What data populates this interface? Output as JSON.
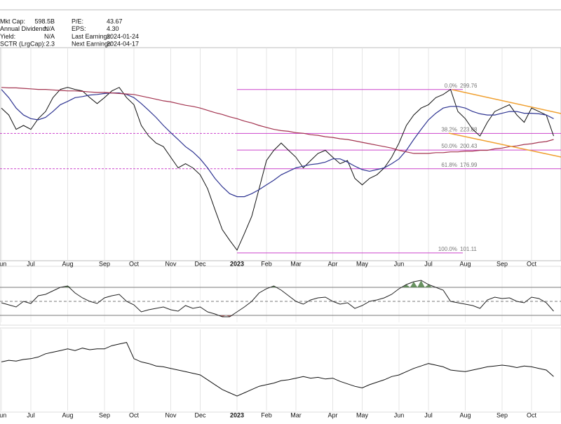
{
  "stats": [
    {
      "label": "Mkt Cap:",
      "value": "598.5B"
    },
    {
      "label": "Annual Dividend:",
      "value": "N/A"
    },
    {
      "label": "Yield:",
      "value": "N/A"
    },
    {
      "label": "SCTR (LrgCap):",
      "value": "2.3"
    },
    {
      "label": "P/E:",
      "value": "43.67"
    },
    {
      "label": "EPS:",
      "value": "4.30"
    },
    {
      "label": "Last Earnings:",
      "value": "2024-01-24"
    },
    {
      "label": "Next Earnings:",
      "value": "2024-04-17"
    }
  ],
  "chart_data": [
    {
      "type": "line",
      "log_scale": true,
      "ylim": [
        96,
        396
      ],
      "grid": true,
      "categories": [
        "Jun",
        null,
        null,
        null,
        "Jul",
        null,
        null,
        null,
        null,
        "Aug",
        null,
        null,
        null,
        null,
        "Sep",
        null,
        null,
        null,
        "Oct",
        null,
        null,
        null,
        null,
        "Nov",
        null,
        null,
        null,
        "Dec",
        null,
        null,
        null,
        null,
        "2023",
        null,
        null,
        null,
        "Feb",
        null,
        null,
        null,
        "Mar",
        null,
        null,
        null,
        null,
        "Apr",
        null,
        null,
        null,
        "May",
        null,
        null,
        null,
        null,
        "Jun",
        null,
        null,
        null,
        "Jul",
        null,
        null,
        null,
        null,
        "Aug",
        null,
        null,
        null,
        null,
        "Sep",
        null,
        null,
        null,
        "Oct",
        null,
        null,
        null
      ],
      "series": [
        {
          "color": "#111111",
          "values": [
            265,
            253,
            230,
            236,
            230,
            247,
            259,
            284,
            300,
            304,
            300,
            297,
            284,
            273,
            284,
            297,
            304,
            284,
            271,
            236,
            220,
            210,
            205,
            191,
            178,
            183,
            178,
            170,
            155,
            135,
            118,
            110,
            103,
            115,
            129,
            155,
            187,
            200,
            210,
            200,
            191,
            178,
            187,
            196,
            200,
            191,
            183,
            187,
            166,
            159,
            166,
            170,
            178,
            191,
            210,
            236,
            253,
            265,
            271,
            284,
            290,
            300,
            259,
            247,
            230,
            220,
            241,
            259,
            265,
            271,
            253,
            241,
            265,
            259,
            253,
            220
          ]
        },
        {
          "color": "#2f3592",
          "values": [
            300,
            284,
            265,
            253,
            247,
            245,
            249,
            259,
            271,
            277,
            284,
            286,
            289,
            290,
            292,
            293,
            293,
            290,
            284,
            273,
            261,
            249,
            236,
            225,
            215,
            205,
            198,
            189,
            178,
            166,
            157,
            150,
            147,
            147,
            150,
            154,
            159,
            164,
            170,
            174,
            178,
            180,
            182,
            183,
            185,
            189,
            189,
            185,
            180,
            176,
            174,
            176,
            178,
            183,
            189,
            200,
            215,
            230,
            245,
            256,
            265,
            268,
            268,
            265,
            259,
            255,
            253,
            253,
            256,
            259,
            259,
            256,
            256,
            255,
            253,
            247
          ]
        },
        {
          "color": "#a3334f",
          "values": [
            304,
            303,
            303,
            302,
            301,
            300,
            300,
            299,
            298,
            297,
            297,
            296,
            295,
            294,
            294,
            293,
            292,
            291,
            290,
            287,
            284,
            281,
            278,
            276,
            273,
            270,
            268,
            265,
            261,
            257,
            254,
            250,
            247,
            243,
            240,
            236,
            233,
            230,
            228,
            227,
            225,
            224,
            222,
            221,
            219,
            218,
            216,
            215,
            213,
            211,
            209,
            207,
            205,
            203,
            200,
            198,
            196,
            196,
            196,
            197,
            197,
            198,
            198,
            199,
            199,
            200,
            200,
            202,
            203,
            205,
            206,
            208,
            209,
            211,
            212,
            215
          ]
        }
      ],
      "fib_color": "#cc44cc",
      "fib_levels": [
        {
          "pct": "0.0%",
          "value": 299.76
        },
        {
          "pct": "38.2%",
          "value": 223.88
        },
        {
          "pct": "50.0%",
          "value": 200.43
        },
        {
          "pct": "61.8%",
          "value": 176.99
        },
        {
          "pct": "100.0%",
          "value": 101.11
        }
      ]
    },
    {
      "type": "line",
      "ylim": [
        20,
        100
      ],
      "levels": [
        30,
        50,
        70
      ],
      "up_color": "#4f7f45",
      "down_color": "#a05050",
      "series": [
        {
          "color": "#222222",
          "values": [
            48,
            45,
            42,
            50,
            47,
            58,
            60,
            65,
            70,
            72,
            62,
            55,
            50,
            47,
            55,
            58,
            60,
            50,
            45,
            35,
            38,
            40,
            42,
            38,
            36,
            44,
            40,
            42,
            35,
            32,
            28,
            28,
            35,
            42,
            50,
            62,
            68,
            72,
            66,
            58,
            50,
            46,
            52,
            55,
            56,
            50,
            46,
            48,
            40,
            44,
            50,
            52,
            55,
            60,
            68,
            74,
            78,
            80,
            74,
            70,
            66,
            50,
            48,
            46,
            44,
            40,
            52,
            56,
            54,
            55,
            50,
            48,
            56,
            54,
            48,
            36
          ]
        }
      ]
    },
    {
      "type": "line",
      "ylim": [
        0,
        100
      ],
      "categories": [
        "Jun",
        null,
        null,
        null,
        "Jul",
        null,
        null,
        null,
        null,
        "Aug",
        null,
        null,
        null,
        null,
        "Sep",
        null,
        null,
        null,
        "Oct",
        null,
        null,
        null,
        null,
        "Nov",
        null,
        null,
        null,
        "Dec",
        null,
        null,
        null,
        null,
        "2023",
        null,
        null,
        null,
        "Feb",
        null,
        null,
        null,
        "Mar",
        null,
        null,
        null,
        null,
        "Apr",
        null,
        null,
        null,
        "May",
        null,
        null,
        null,
        null,
        "Jun",
        null,
        null,
        null,
        "Jul",
        null,
        null,
        null,
        null,
        "Aug",
        null,
        null,
        null,
        null,
        "Sep",
        null,
        null,
        null,
        "Oct",
        null,
        null,
        null
      ],
      "series": [
        {
          "color": "#111111",
          "values": [
            60,
            62,
            61,
            63,
            64,
            66,
            70,
            72,
            74,
            76,
            74,
            77,
            75,
            76,
            76,
            80,
            82,
            84,
            64,
            60,
            58,
            55,
            54,
            52,
            50,
            48,
            46,
            44,
            38,
            32,
            26,
            22,
            18,
            22,
            26,
            30,
            32,
            34,
            37,
            38,
            40,
            42,
            40,
            41,
            39,
            40,
            36,
            33,
            30,
            28,
            32,
            35,
            38,
            42,
            44,
            48,
            52,
            55,
            58,
            56,
            54,
            50,
            49,
            48,
            50,
            52,
            54,
            55,
            56,
            55,
            53,
            55,
            54,
            52,
            50,
            42
          ]
        }
      ]
    }
  ]
}
